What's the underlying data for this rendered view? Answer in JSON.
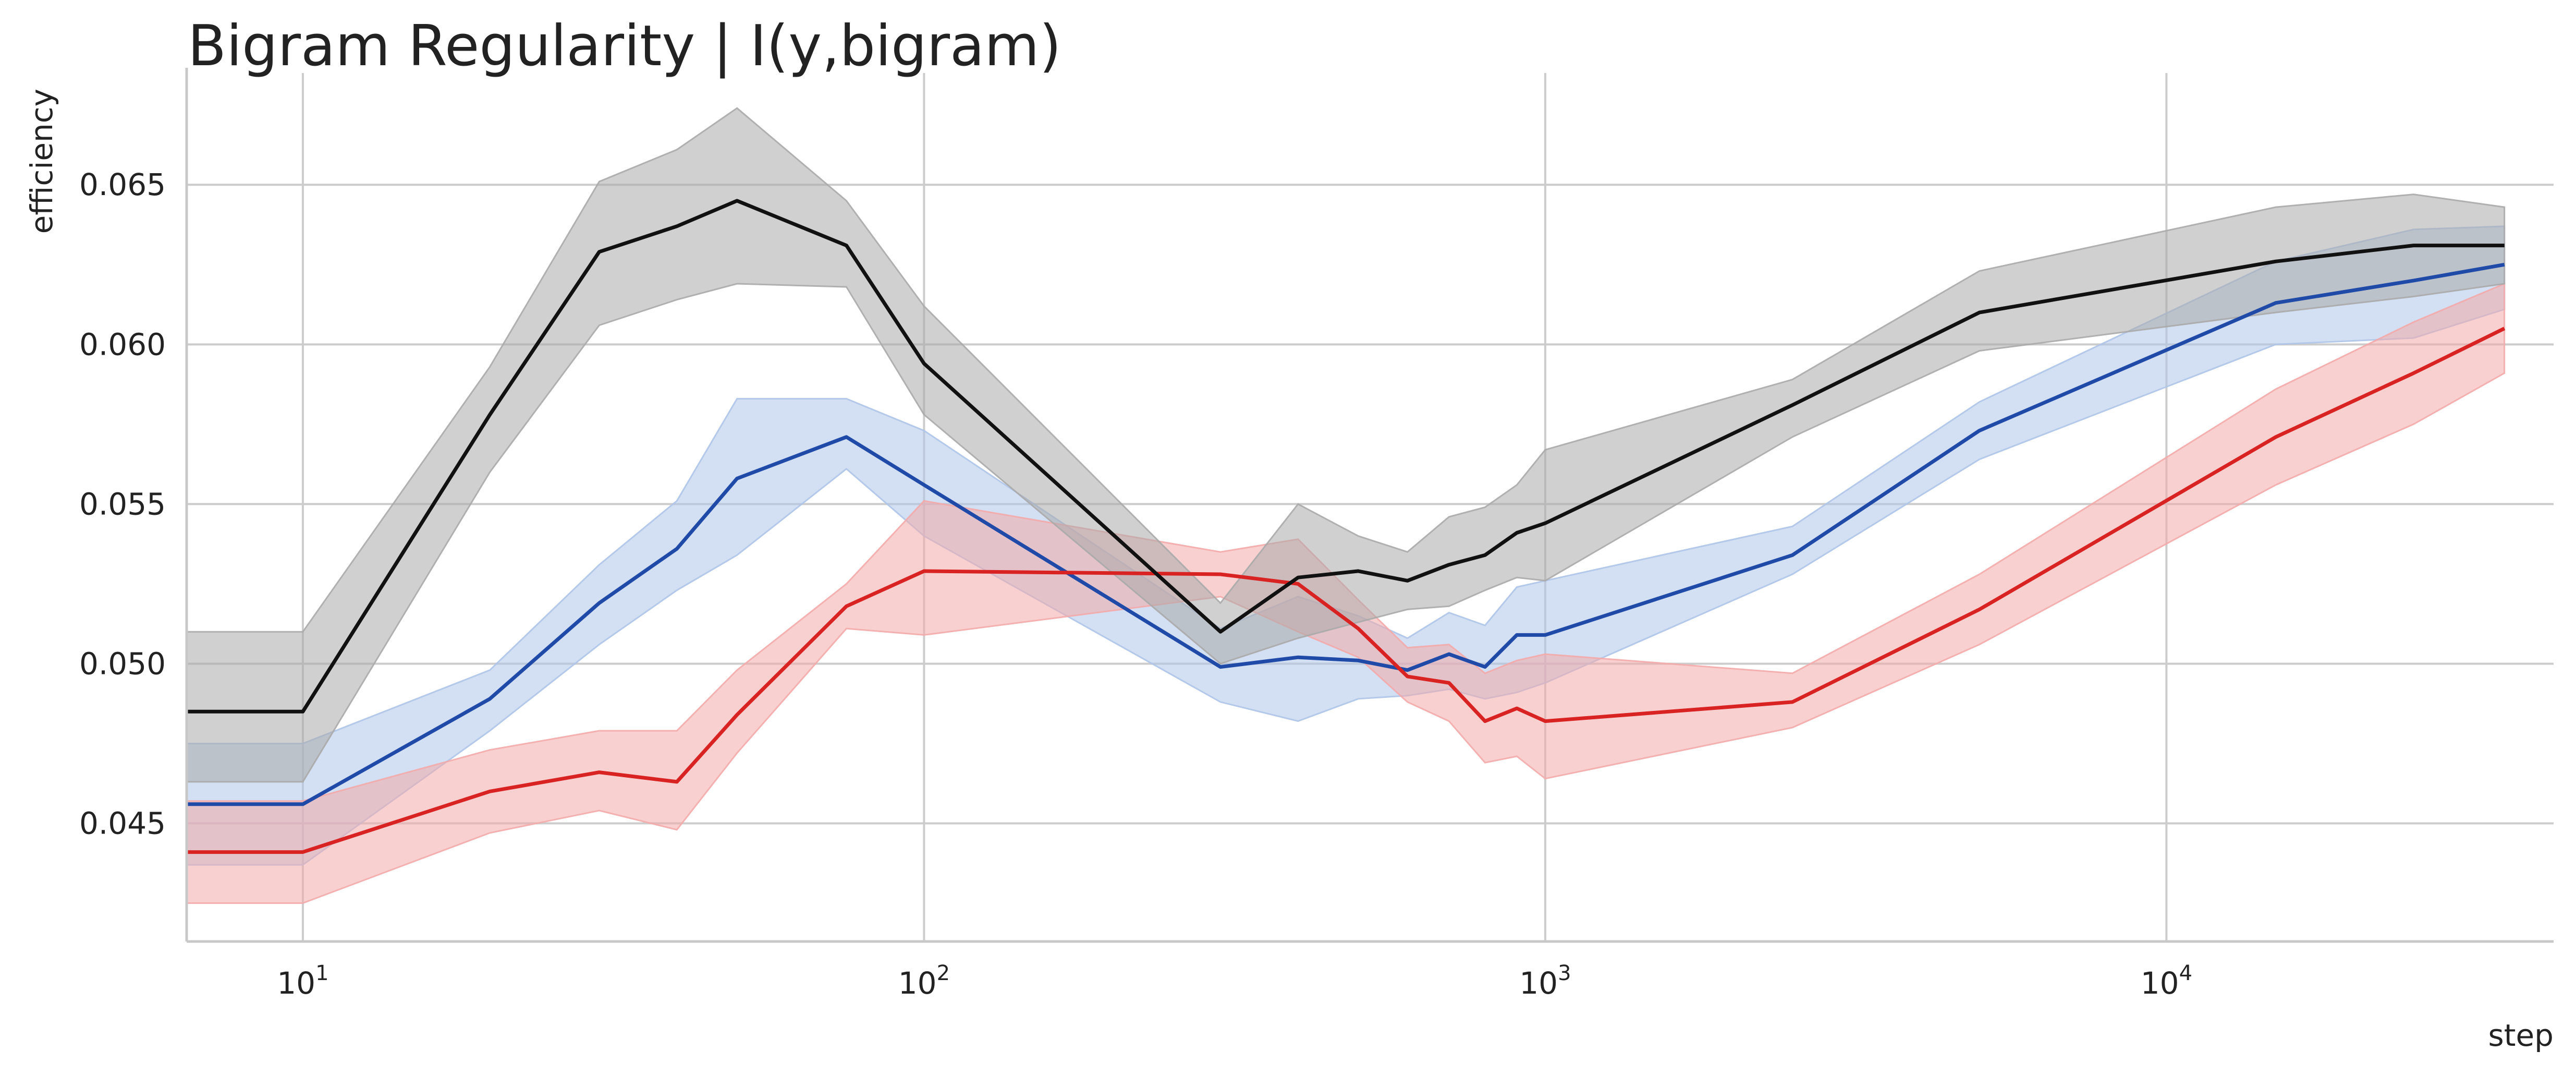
{
  "chart_data": {
    "type": "line",
    "title": "Bigram Regularity | I(y,bigram)",
    "xlabel": "step",
    "ylabel": "efficiency",
    "xscale": "log",
    "xlim": [
      6.5,
      42000
    ],
    "ylim": [
      0.0413,
      0.0685
    ],
    "grid": true,
    "x_ticks": [
      {
        "value": 10,
        "base": "10",
        "exp": "1"
      },
      {
        "value": 100,
        "base": "10",
        "exp": "2"
      },
      {
        "value": 1000,
        "base": "10",
        "exp": "3"
      },
      {
        "value": 10000,
        "base": "10",
        "exp": "4"
      }
    ],
    "y_ticks": [
      {
        "value": 0.045,
        "label": "0.045"
      },
      {
        "value": 0.05,
        "label": "0.050"
      },
      {
        "value": 0.055,
        "label": "0.055"
      },
      {
        "value": 0.06,
        "label": "0.060"
      },
      {
        "value": 0.065,
        "label": "0.065"
      }
    ],
    "series": [
      {
        "name": "blue",
        "color": "#1f4aa8",
        "band_color": "#aec4e8",
        "x": [
          6.5,
          10,
          20,
          30,
          40,
          50,
          75,
          100,
          300,
          400,
          500,
          600,
          700,
          800,
          900,
          1000,
          2500,
          5000,
          15000,
          25000,
          35000
        ],
        "y": [
          0.0456,
          0.0456,
          0.0489,
          0.0519,
          0.0536,
          0.0558,
          0.0571,
          0.0556,
          0.0499,
          0.0502,
          0.0501,
          0.0498,
          0.0503,
          0.0499,
          0.0509,
          0.0509,
          0.0534,
          0.0573,
          0.0613,
          0.062,
          0.0625
        ],
        "lower": [
          0.0437,
          0.0437,
          0.0479,
          0.0506,
          0.0523,
          0.0534,
          0.0561,
          0.054,
          0.0488,
          0.0482,
          0.0489,
          0.049,
          0.0492,
          0.0489,
          0.0491,
          0.0494,
          0.0528,
          0.0564,
          0.06,
          0.0602,
          0.0611
        ],
        "upper": [
          0.0475,
          0.0475,
          0.0498,
          0.0531,
          0.0551,
          0.0583,
          0.0583,
          0.0573,
          0.0511,
          0.0521,
          0.0515,
          0.0508,
          0.0516,
          0.0512,
          0.0524,
          0.0526,
          0.0543,
          0.0582,
          0.0626,
          0.0636,
          0.0637
        ]
      },
      {
        "name": "red",
        "color": "#d92323",
        "band_color": "#f3aaaa",
        "x": [
          6.5,
          10,
          20,
          30,
          40,
          50,
          75,
          100,
          300,
          400,
          500,
          600,
          700,
          800,
          900,
          1000,
          2500,
          5000,
          15000,
          25000,
          35000
        ],
        "y": [
          0.0441,
          0.0441,
          0.046,
          0.0466,
          0.0463,
          0.0484,
          0.0518,
          0.0529,
          0.0528,
          0.0525,
          0.0511,
          0.0496,
          0.0494,
          0.0482,
          0.0486,
          0.0482,
          0.0488,
          0.0517,
          0.0571,
          0.0591,
          0.0605
        ],
        "lower": [
          0.0425,
          0.0425,
          0.0447,
          0.0454,
          0.0448,
          0.0472,
          0.0511,
          0.0509,
          0.0521,
          0.051,
          0.0502,
          0.0488,
          0.0482,
          0.0469,
          0.0471,
          0.0464,
          0.048,
          0.0506,
          0.0556,
          0.0575,
          0.0591
        ],
        "upper": [
          0.0457,
          0.0457,
          0.0473,
          0.0479,
          0.0479,
          0.0498,
          0.0525,
          0.0551,
          0.0535,
          0.0539,
          0.052,
          0.0505,
          0.0506,
          0.0497,
          0.0501,
          0.0503,
          0.0497,
          0.0528,
          0.0586,
          0.0607,
          0.0619
        ]
      },
      {
        "name": "black",
        "color": "#111111",
        "band_color": "#aaaaaa",
        "x": [
          6.5,
          10,
          20,
          30,
          40,
          50,
          75,
          100,
          300,
          400,
          500,
          600,
          700,
          800,
          900,
          1000,
          2500,
          5000,
          15000,
          25000,
          35000
        ],
        "y": [
          0.0485,
          0.0485,
          0.0578,
          0.0629,
          0.0637,
          0.0645,
          0.0631,
          0.0594,
          0.051,
          0.0527,
          0.0529,
          0.0526,
          0.0531,
          0.0534,
          0.0541,
          0.0544,
          0.0581,
          0.061,
          0.0626,
          0.0631,
          0.0631
        ],
        "lower": [
          0.0463,
          0.0463,
          0.056,
          0.0606,
          0.0614,
          0.0619,
          0.0618,
          0.0578,
          0.05,
          0.0508,
          0.0513,
          0.0517,
          0.0518,
          0.0523,
          0.0527,
          0.0526,
          0.0571,
          0.0598,
          0.061,
          0.0615,
          0.0619
        ],
        "upper": [
          0.051,
          0.051,
          0.0593,
          0.0651,
          0.0661,
          0.0674,
          0.0645,
          0.0612,
          0.0519,
          0.055,
          0.054,
          0.0535,
          0.0546,
          0.0549,
          0.0556,
          0.0567,
          0.0589,
          0.0623,
          0.0643,
          0.0647,
          0.0643
        ]
      }
    ]
  }
}
